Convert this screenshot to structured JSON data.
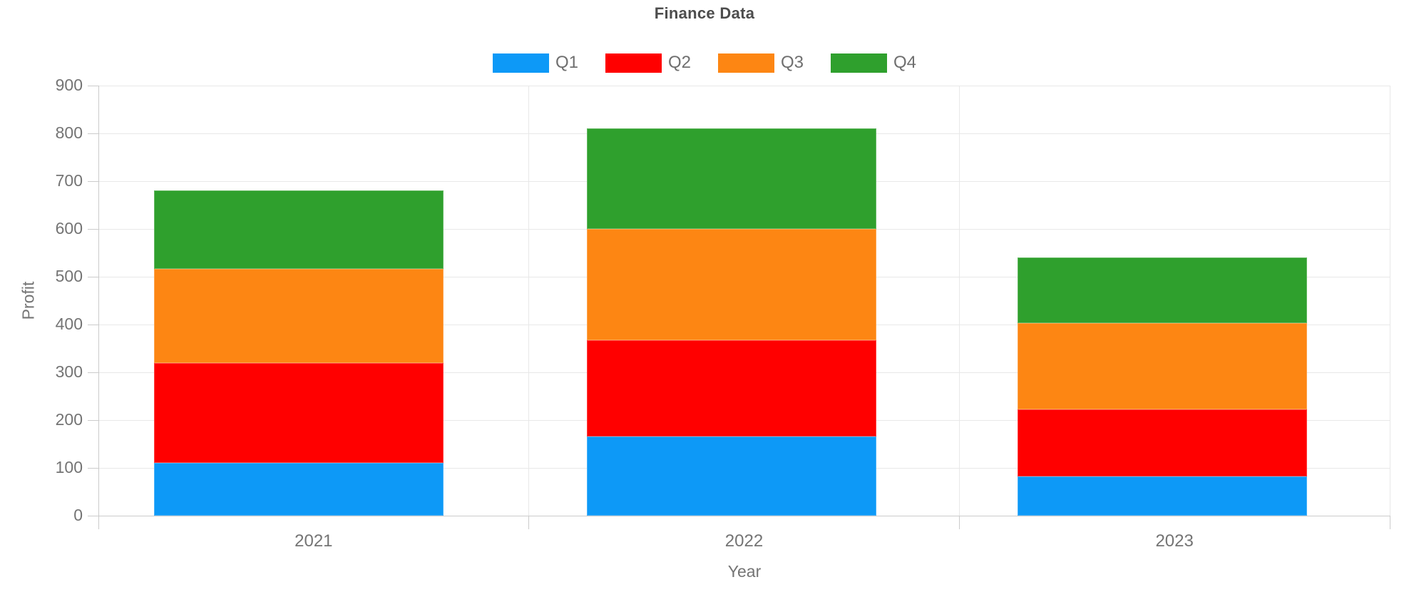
{
  "chart_data": {
    "type": "bar",
    "stacked": true,
    "title": "Finance Data",
    "xlabel": "Year",
    "ylabel": "Profit",
    "categories": [
      "2021",
      "2022",
      "2023"
    ],
    "series": [
      {
        "name": "Q1",
        "color": "#0d99f7",
        "values": [
          110,
          166,
          82
        ]
      },
      {
        "name": "Q2",
        "color": "#ff0000",
        "values": [
          209,
          201,
          140
        ]
      },
      {
        "name": "Q3",
        "color": "#fd8613",
        "values": [
          197,
          233,
          181
        ]
      },
      {
        "name": "Q4",
        "color": "#2fa02d",
        "values": [
          164,
          210,
          137
        ]
      }
    ],
    "totals": [
      680,
      810,
      540
    ],
    "ylim": [
      0,
      900
    ],
    "ytick_step": 100,
    "yticks": [
      "0",
      "100",
      "200",
      "300",
      "400",
      "500",
      "600",
      "700",
      "800",
      "900"
    ],
    "grid": true,
    "legend_position": "top",
    "legend_entries": [
      "Q1",
      "Q2",
      "Q3",
      "Q4"
    ]
  },
  "colors": {
    "title_text": "#4d4d4d",
    "axis_text": "#747474",
    "gridline": "#e8e8e8",
    "axis_line": "#cbcbcb",
    "background": "#ffffff"
  }
}
